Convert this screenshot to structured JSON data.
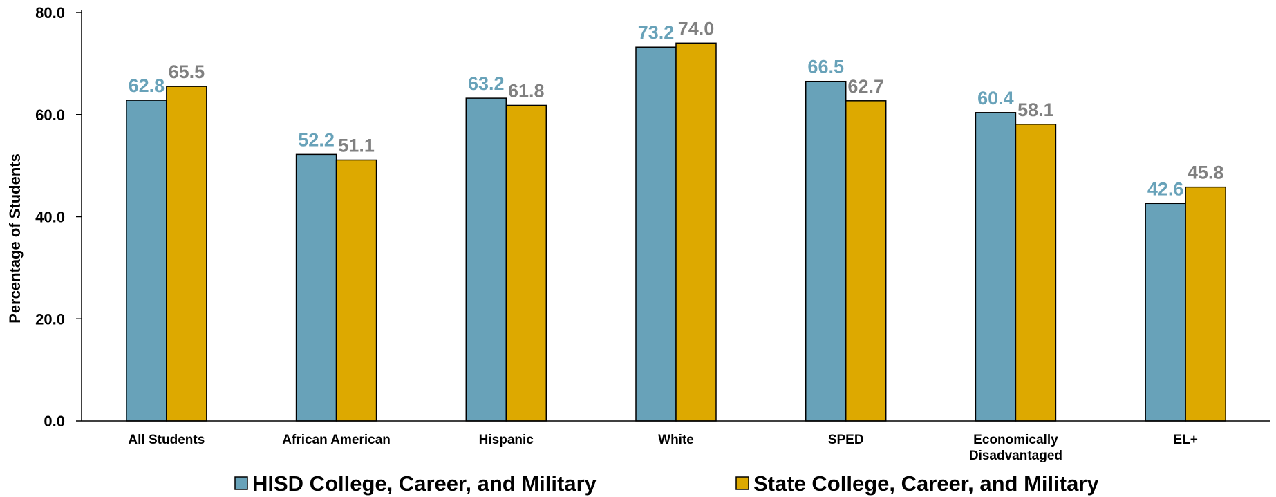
{
  "chart_data": {
    "type": "bar",
    "categories": [
      "All Students",
      "African American",
      "Hispanic",
      "White",
      "SPED",
      "Economically\nDisadvantaged",
      "EL+"
    ],
    "series": [
      {
        "name": "HISD College, Career, and Military",
        "values": [
          62.8,
          52.2,
          63.2,
          73.2,
          66.5,
          60.4,
          42.6
        ],
        "color": "#68A2B9",
        "label_color": "#68A2B9"
      },
      {
        "name": "State College, Career, and Military",
        "values": [
          65.5,
          51.1,
          61.8,
          74.0,
          62.7,
          58.1,
          45.8
        ],
        "color": "#DDA900",
        "label_color": "#808080"
      }
    ],
    "ylabel": "Percentage of Students",
    "ylim": [
      0,
      80
    ],
    "yticks": [
      "0.0",
      "20.0",
      "40.0",
      "60.0",
      "80.0"
    ],
    "grid": false,
    "legend_position": "bottom"
  }
}
